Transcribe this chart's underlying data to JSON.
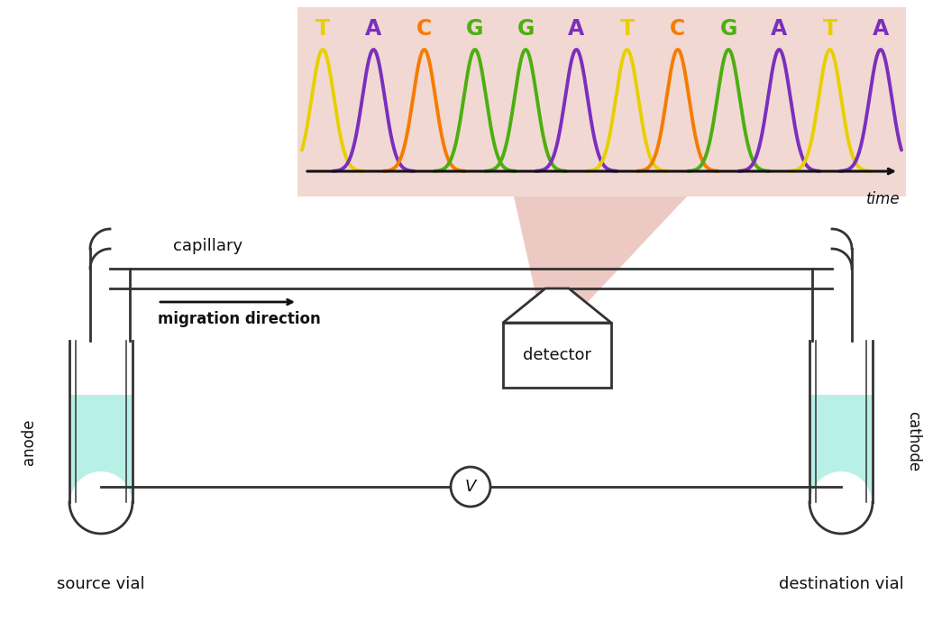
{
  "fig_width": 10.45,
  "fig_height": 6.9,
  "bg_color": "#ffffff",
  "sequence": [
    "T",
    "A",
    "C",
    "G",
    "G",
    "A",
    "T",
    "C",
    "G",
    "A",
    "T",
    "A"
  ],
  "seq_colors": {
    "T": "#e8d000",
    "A": "#7b2fbe",
    "C": "#f57c00",
    "G": "#4caf10"
  },
  "chromatogram_bg": "#f2d8d2",
  "peak_colors": {
    "T": "#e8d000",
    "A": "#7b2fbe",
    "C": "#f57c00",
    "G": "#4caf10"
  },
  "liquid_color": "#b8f0e8",
  "tube_outline": "#333333",
  "wire_color": "#333333",
  "capillary_color": "#333333",
  "detector_color": "#ffffff",
  "detector_outline": "#333333",
  "arrow_color": "#111111",
  "text_color": "#111111",
  "pink_cone_color": "#e8b8b0"
}
